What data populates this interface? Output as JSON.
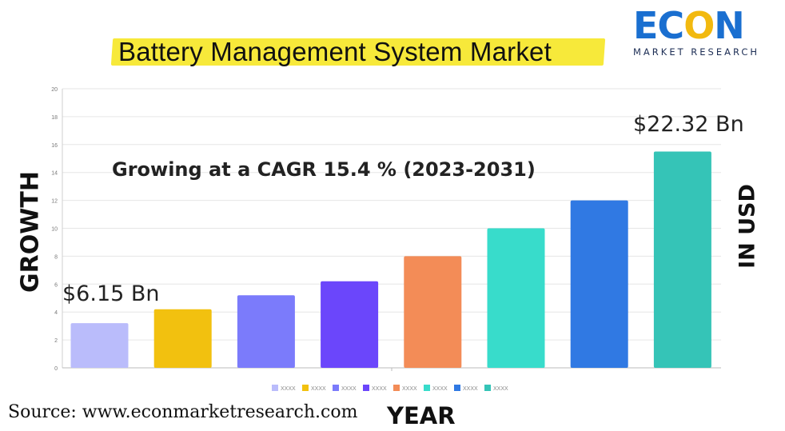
{
  "title": "Battery Management System Market",
  "logo": {
    "word_prefix": "EC",
    "word_o": "O",
    "word_suffix": "N",
    "subtitle": "MARKET RESEARCH"
  },
  "annotations": {
    "cagr": "Growing at a CAGR 15.4 % (2023-2031)",
    "start_value": "$6.15 Bn",
    "end_value": "$22.32 Bn"
  },
  "source": "Source: www.econmarketresearch.com",
  "chart_data": {
    "type": "bar",
    "xlabel": "YEAR",
    "ylabel": "GROWTH",
    "ylabel_right": "IN USD",
    "ylim": [
      0,
      20
    ],
    "yticks": [
      0,
      2,
      4,
      6,
      8,
      10,
      12,
      14,
      16,
      18,
      20
    ],
    "grid": true,
    "legend_placement": "bottom",
    "series": [
      {
        "name": "XXXX",
        "value": 3.2,
        "color": "#babcfb"
      },
      {
        "name": "XXXX",
        "value": 4.2,
        "color": "#f2c10f"
      },
      {
        "name": "XXXX",
        "value": 5.2,
        "color": "#7b7bfb"
      },
      {
        "name": "XXXX",
        "value": 6.2,
        "color": "#6b46fb"
      },
      {
        "name": "XXXX",
        "value": 8.0,
        "color": "#f38c57"
      },
      {
        "name": "XXXX",
        "value": 10.0,
        "color": "#38dccb"
      },
      {
        "name": "XXXX",
        "value": 12.0,
        "color": "#3079e3"
      },
      {
        "name": "XXXX",
        "value": 15.5,
        "color": "#35c4b7"
      }
    ]
  }
}
